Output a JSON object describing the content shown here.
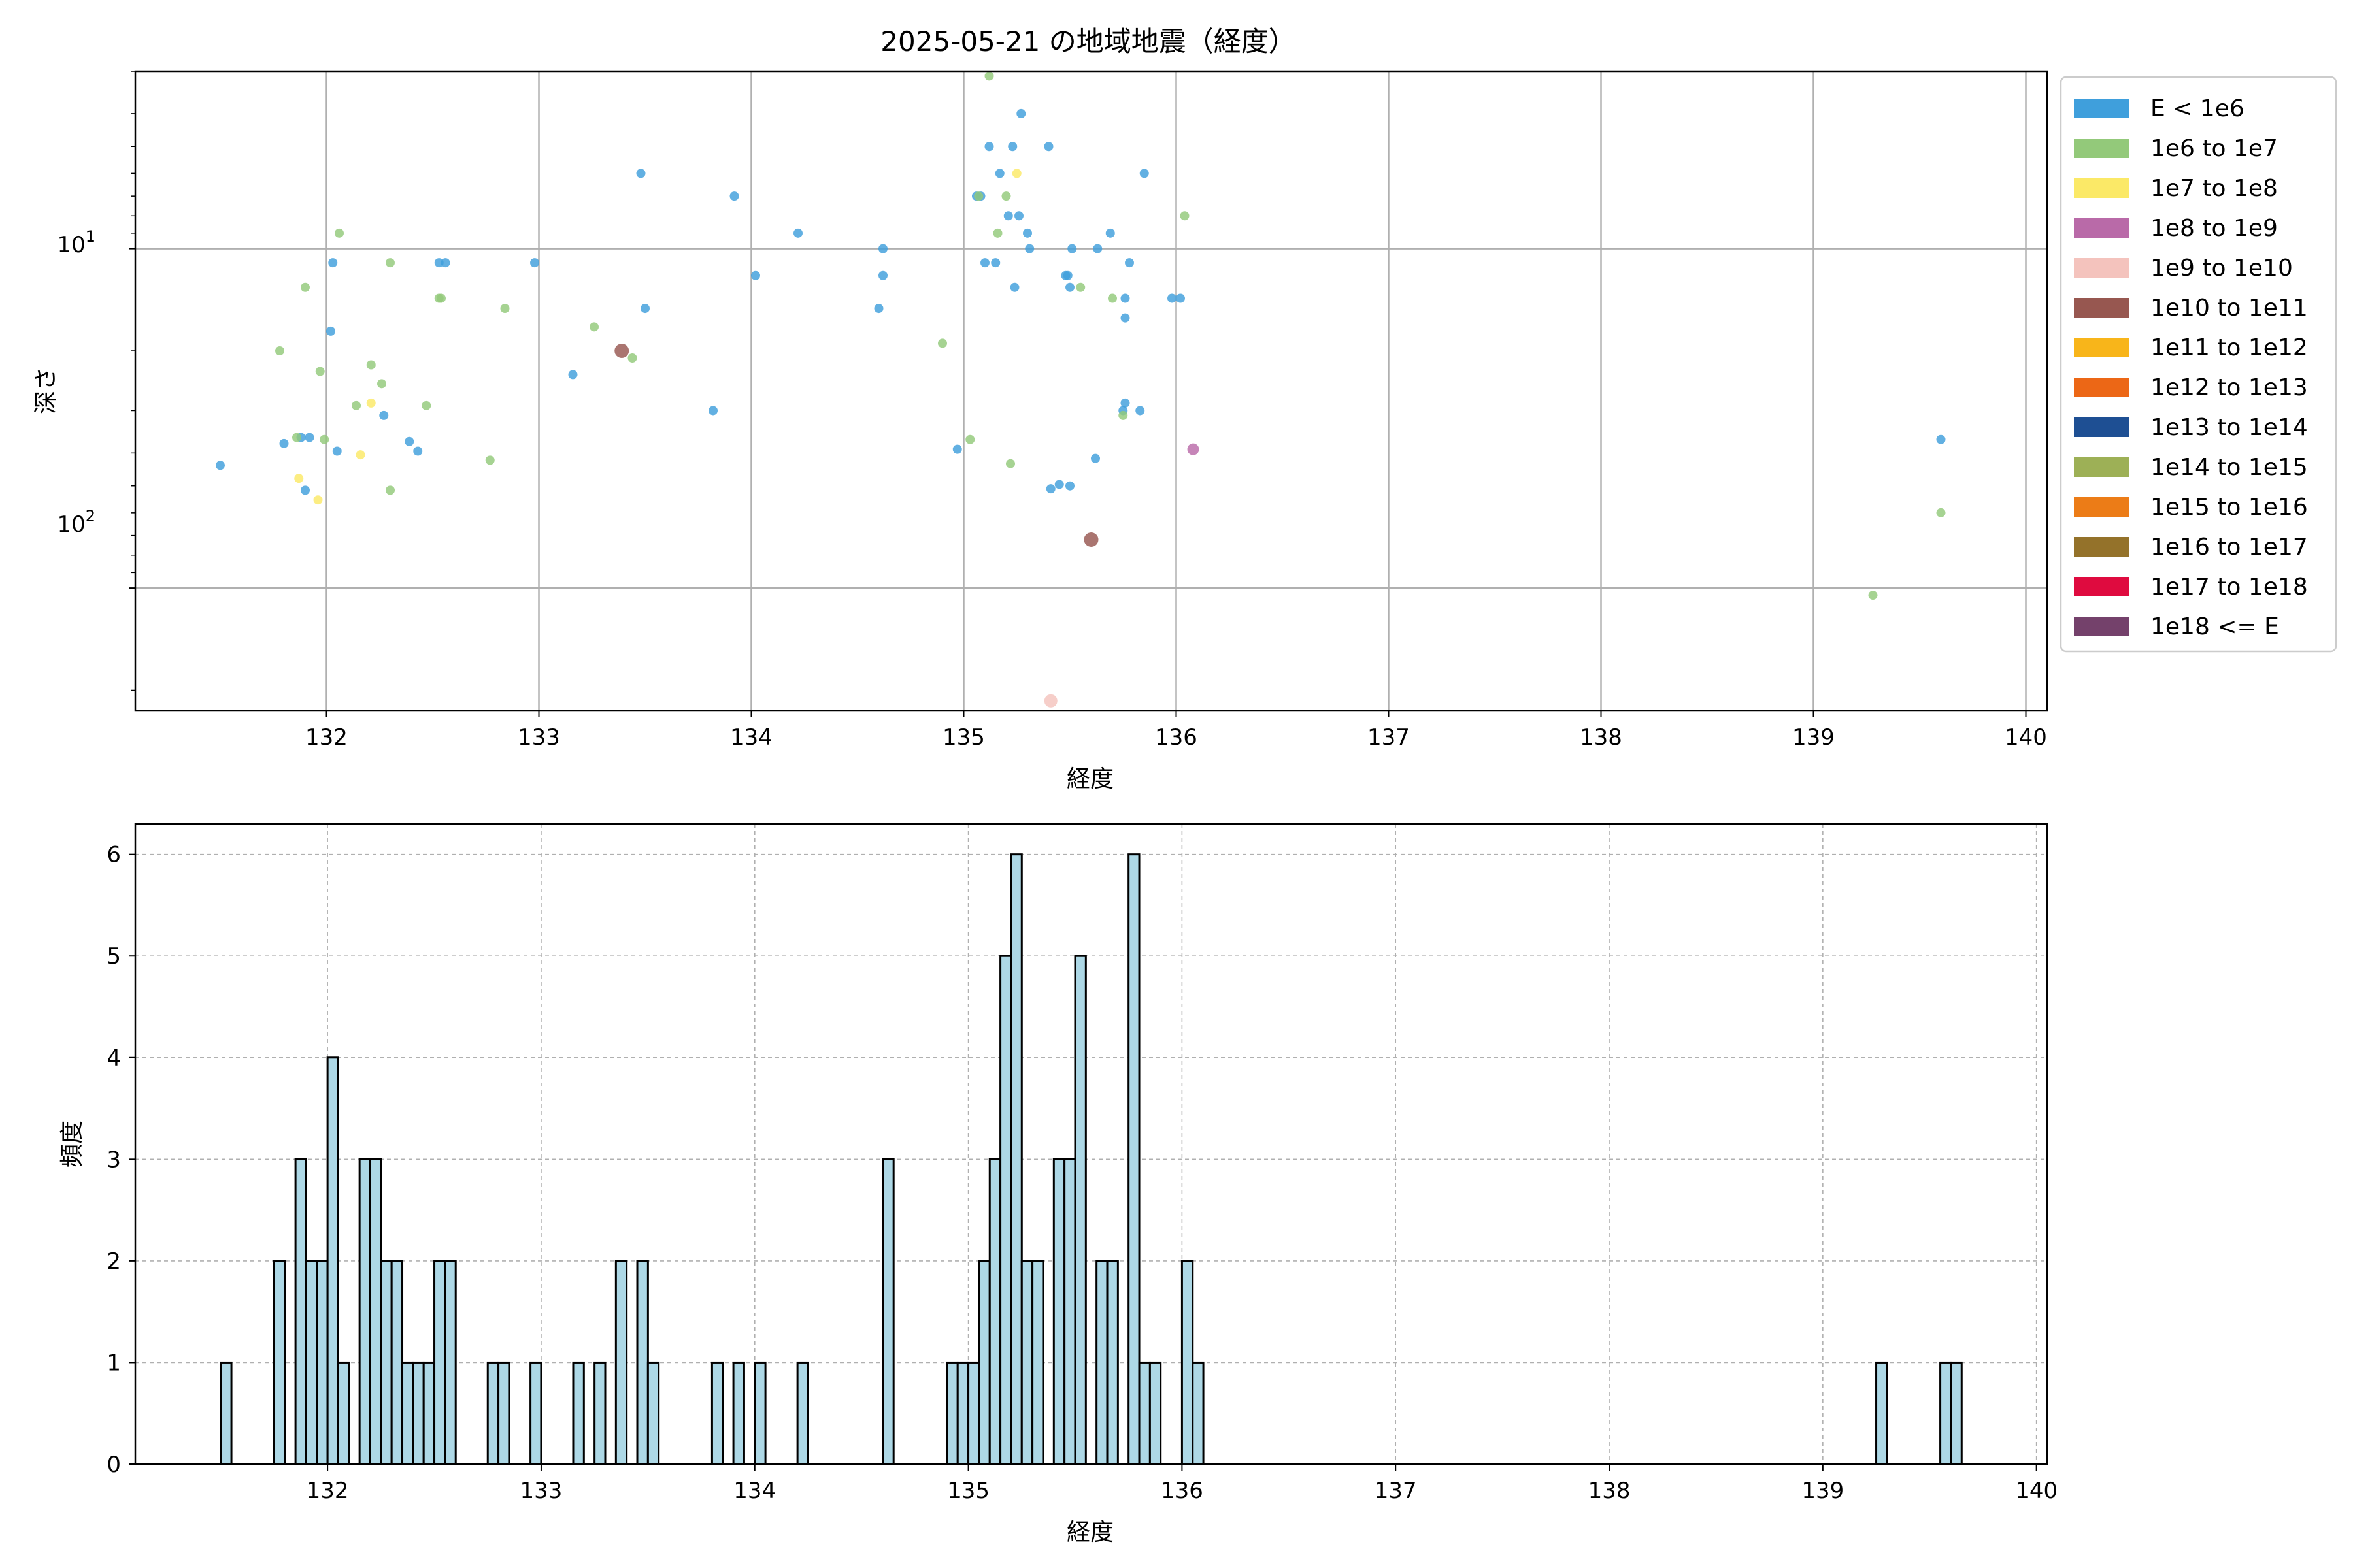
{
  "chart_data": [
    {
      "type": "scatter",
      "title": "2025-05-21 の地域地震（経度）",
      "xlabel": "経度",
      "ylabel": "深さ",
      "xlim": [
        131.1,
        140.1
      ],
      "ylim": [
        230,
        3
      ],
      "y_scale": "log",
      "y_inverted": true,
      "grid": true,
      "xticks": [
        132,
        133,
        134,
        135,
        136,
        137,
        138,
        139,
        140
      ],
      "xtick_labels": [
        "132",
        "133",
        "134",
        "135",
        "136",
        "137",
        "138",
        "139",
        "140"
      ],
      "yticks": [
        10,
        100
      ],
      "ytick_base": "10",
      "ytick_exponents": [
        "1",
        "2"
      ],
      "legend_position": "outside-right",
      "legend": [
        {
          "label": "E < 1e6",
          "color": "#3f9fdc"
        },
        {
          "label": "1e6 to 1e7",
          "color": "#93c97a"
        },
        {
          "label": "1e7 to 1e8",
          "color": "#fbe967"
        },
        {
          "label": "1e8 to 1e9",
          "color": "#b96aa8"
        },
        {
          "label": "1e9 to 1e10",
          "color": "#f4c3bd"
        },
        {
          "label": "1e10 to 1e11",
          "color": "#975750"
        },
        {
          "label": "1e11 to 1e12",
          "color": "#f8b51a"
        },
        {
          "label": "1e12 to 1e13",
          "color": "#ec6716"
        },
        {
          "label": "1e13 to 1e14",
          "color": "#1e4f93"
        },
        {
          "label": "1e14 to 1e15",
          "color": "#9db056"
        },
        {
          "label": "1e15 to 1e16",
          "color": "#ec7c17"
        },
        {
          "label": "1e16 to 1e17",
          "color": "#94722a"
        },
        {
          "label": "1e17 to 1e18",
          "color": "#df0b3f"
        },
        {
          "label": "1e18 <= E",
          "color": "#74416b"
        }
      ],
      "points": [
        {
          "x": 131.5,
          "y": 43.5,
          "c": 0
        },
        {
          "x": 131.8,
          "y": 37.5,
          "c": 0
        },
        {
          "x": 131.88,
          "y": 36,
          "c": 0
        },
        {
          "x": 131.9,
          "y": 51.5,
          "c": 0
        },
        {
          "x": 131.92,
          "y": 36,
          "c": 0
        },
        {
          "x": 132.02,
          "y": 17.5,
          "c": 0
        },
        {
          "x": 132.03,
          "y": 11,
          "c": 0
        },
        {
          "x": 132.05,
          "y": 39.5,
          "c": 0
        },
        {
          "x": 132.27,
          "y": 31,
          "c": 0
        },
        {
          "x": 132.39,
          "y": 37,
          "c": 0
        },
        {
          "x": 132.43,
          "y": 39.5,
          "c": 0
        },
        {
          "x": 132.53,
          "y": 11,
          "c": 0
        },
        {
          "x": 132.56,
          "y": 11,
          "c": 0
        },
        {
          "x": 132.98,
          "y": 11,
          "c": 0
        },
        {
          "x": 133.16,
          "y": 23.5,
          "c": 0
        },
        {
          "x": 133.48,
          "y": 6,
          "c": 0
        },
        {
          "x": 133.5,
          "y": 15,
          "c": 0
        },
        {
          "x": 133.82,
          "y": 30,
          "c": 0
        },
        {
          "x": 133.92,
          "y": 7,
          "c": 0
        },
        {
          "x": 134.02,
          "y": 12,
          "c": 0
        },
        {
          "x": 134.22,
          "y": 9,
          "c": 0
        },
        {
          "x": 134.6,
          "y": 15,
          "c": 0
        },
        {
          "x": 134.62,
          "y": 12,
          "c": 0
        },
        {
          "x": 134.62,
          "y": 10,
          "c": 0
        },
        {
          "x": 134.97,
          "y": 39,
          "c": 0
        },
        {
          "x": 135.06,
          "y": 7,
          "c": 0
        },
        {
          "x": 135.08,
          "y": 7,
          "c": 0
        },
        {
          "x": 135.1,
          "y": 11,
          "c": 0
        },
        {
          "x": 135.12,
          "y": 5,
          "c": 0
        },
        {
          "x": 135.15,
          "y": 11,
          "c": 0
        },
        {
          "x": 135.17,
          "y": 6,
          "c": 0
        },
        {
          "x": 135.21,
          "y": 8,
          "c": 0
        },
        {
          "x": 135.23,
          "y": 5,
          "c": 0
        },
        {
          "x": 135.24,
          "y": 13,
          "c": 0
        },
        {
          "x": 135.26,
          "y": 8,
          "c": 0
        },
        {
          "x": 135.27,
          "y": 4,
          "c": 0
        },
        {
          "x": 135.3,
          "y": 9,
          "c": 0
        },
        {
          "x": 135.31,
          "y": 10,
          "c": 0
        },
        {
          "x": 135.4,
          "y": 5,
          "c": 0
        },
        {
          "x": 135.41,
          "y": 51,
          "c": 0
        },
        {
          "x": 135.45,
          "y": 49.5,
          "c": 0
        },
        {
          "x": 135.48,
          "y": 12,
          "c": 0
        },
        {
          "x": 135.49,
          "y": 12,
          "c": 0
        },
        {
          "x": 135.5,
          "y": 13,
          "c": 0
        },
        {
          "x": 135.5,
          "y": 50,
          "c": 0
        },
        {
          "x": 135.51,
          "y": 10,
          "c": 0
        },
        {
          "x": 135.62,
          "y": 41.5,
          "c": 0
        },
        {
          "x": 135.63,
          "y": 10,
          "c": 0
        },
        {
          "x": 135.69,
          "y": 9,
          "c": 0
        },
        {
          "x": 135.75,
          "y": 30,
          "c": 0
        },
        {
          "x": 135.76,
          "y": 28.5,
          "c": 0
        },
        {
          "x": 135.76,
          "y": 16,
          "c": 0
        },
        {
          "x": 135.76,
          "y": 14,
          "c": 0
        },
        {
          "x": 135.78,
          "y": 11,
          "c": 0
        },
        {
          "x": 135.83,
          "y": 30,
          "c": 0
        },
        {
          "x": 135.85,
          "y": 6,
          "c": 0
        },
        {
          "x": 135.98,
          "y": 14,
          "c": 0
        },
        {
          "x": 136.02,
          "y": 14,
          "c": 0
        },
        {
          "x": 139.6,
          "y": 36.5,
          "c": 0
        },
        {
          "x": 131.78,
          "y": 20,
          "c": 1
        },
        {
          "x": 131.86,
          "y": 36,
          "c": 1
        },
        {
          "x": 131.9,
          "y": 13,
          "c": 1
        },
        {
          "x": 131.97,
          "y": 23,
          "c": 1
        },
        {
          "x": 131.99,
          "y": 36.5,
          "c": 1
        },
        {
          "x": 132.06,
          "y": 9,
          "c": 1
        },
        {
          "x": 132.14,
          "y": 29,
          "c": 1
        },
        {
          "x": 132.21,
          "y": 22,
          "c": 1
        },
        {
          "x": 132.26,
          "y": 25,
          "c": 1
        },
        {
          "x": 132.3,
          "y": 11,
          "c": 1
        },
        {
          "x": 132.3,
          "y": 51.5,
          "c": 1
        },
        {
          "x": 132.47,
          "y": 29,
          "c": 1
        },
        {
          "x": 132.53,
          "y": 14,
          "c": 1
        },
        {
          "x": 132.54,
          "y": 14,
          "c": 1
        },
        {
          "x": 132.77,
          "y": 42,
          "c": 1
        },
        {
          "x": 132.84,
          "y": 15,
          "c": 1
        },
        {
          "x": 133.26,
          "y": 17,
          "c": 1
        },
        {
          "x": 133.44,
          "y": 21,
          "c": 1
        },
        {
          "x": 134.9,
          "y": 19,
          "c": 1
        },
        {
          "x": 135.03,
          "y": 36.5,
          "c": 1
        },
        {
          "x": 135.07,
          "y": 7,
          "c": 1
        },
        {
          "x": 135.12,
          "y": 3.1,
          "c": 1
        },
        {
          "x": 135.16,
          "y": 9,
          "c": 1
        },
        {
          "x": 135.2,
          "y": 7,
          "c": 1
        },
        {
          "x": 135.22,
          "y": 43,
          "c": 1
        },
        {
          "x": 135.55,
          "y": 13,
          "c": 1
        },
        {
          "x": 135.7,
          "y": 14,
          "c": 1
        },
        {
          "x": 135.75,
          "y": 31,
          "c": 1
        },
        {
          "x": 136.04,
          "y": 8,
          "c": 1
        },
        {
          "x": 139.28,
          "y": 105,
          "c": 1
        },
        {
          "x": 139.6,
          "y": 60,
          "c": 1
        },
        {
          "x": 131.87,
          "y": 47.5,
          "c": 2
        },
        {
          "x": 131.96,
          "y": 55,
          "c": 2
        },
        {
          "x": 132.16,
          "y": 40.5,
          "c": 2
        },
        {
          "x": 132.21,
          "y": 28.5,
          "c": 2
        },
        {
          "x": 135.25,
          "y": 6,
          "c": 2
        },
        {
          "x": 136.08,
          "y": 39,
          "c": 3
        },
        {
          "x": 135.41,
          "y": 215,
          "c": 4
        },
        {
          "x": 133.39,
          "y": 20,
          "c": 5
        },
        {
          "x": 135.6,
          "y": 72,
          "c": 5
        }
      ]
    },
    {
      "type": "bar",
      "xlabel": "経度",
      "ylabel": "頻度",
      "xlim": [
        131.1,
        140.05
      ],
      "ylim": [
        0,
        6.3
      ],
      "grid": true,
      "bin_width": 0.05,
      "bar_color": "#add8e6",
      "xticks": [
        132,
        133,
        134,
        135,
        136,
        137,
        138,
        139,
        140
      ],
      "xtick_labels": [
        "132",
        "133",
        "134",
        "135",
        "136",
        "137",
        "138",
        "139",
        "140"
      ],
      "yticks": [
        0,
        1,
        2,
        3,
        4,
        5,
        6
      ],
      "ytick_labels": [
        "0",
        "1",
        "2",
        "3",
        "4",
        "5",
        "6"
      ],
      "bins": [
        {
          "x": 131.5,
          "value": 1
        },
        {
          "x": 131.75,
          "value": 2
        },
        {
          "x": 131.85,
          "value": 3
        },
        {
          "x": 131.9,
          "value": 2
        },
        {
          "x": 131.95,
          "value": 2
        },
        {
          "x": 132.0,
          "value": 4
        },
        {
          "x": 132.05,
          "value": 1
        },
        {
          "x": 132.15,
          "value": 3
        },
        {
          "x": 132.2,
          "value": 3
        },
        {
          "x": 132.25,
          "value": 2
        },
        {
          "x": 132.3,
          "value": 2
        },
        {
          "x": 132.35,
          "value": 1
        },
        {
          "x": 132.4,
          "value": 1
        },
        {
          "x": 132.45,
          "value": 1
        },
        {
          "x": 132.5,
          "value": 2
        },
        {
          "x": 132.55,
          "value": 2
        },
        {
          "x": 132.75,
          "value": 1
        },
        {
          "x": 132.8,
          "value": 1
        },
        {
          "x": 132.95,
          "value": 1
        },
        {
          "x": 133.15,
          "value": 1
        },
        {
          "x": 133.25,
          "value": 1
        },
        {
          "x": 133.35,
          "value": 2
        },
        {
          "x": 133.45,
          "value": 2
        },
        {
          "x": 133.5,
          "value": 1
        },
        {
          "x": 133.8,
          "value": 1
        },
        {
          "x": 133.9,
          "value": 1
        },
        {
          "x": 134.0,
          "value": 1
        },
        {
          "x": 134.2,
          "value": 1
        },
        {
          "x": 134.6,
          "value": 3
        },
        {
          "x": 134.9,
          "value": 1
        },
        {
          "x": 134.95,
          "value": 1
        },
        {
          "x": 135.0,
          "value": 1
        },
        {
          "x": 135.05,
          "value": 2
        },
        {
          "x": 135.1,
          "value": 3
        },
        {
          "x": 135.15,
          "value": 5
        },
        {
          "x": 135.2,
          "value": 6
        },
        {
          "x": 135.25,
          "value": 2
        },
        {
          "x": 135.3,
          "value": 2
        },
        {
          "x": 135.4,
          "value": 3
        },
        {
          "x": 135.45,
          "value": 3
        },
        {
          "x": 135.5,
          "value": 5
        },
        {
          "x": 135.6,
          "value": 2
        },
        {
          "x": 135.65,
          "value": 2
        },
        {
          "x": 135.75,
          "value": 6
        },
        {
          "x": 135.8,
          "value": 1
        },
        {
          "x": 135.85,
          "value": 1
        },
        {
          "x": 136.0,
          "value": 2
        },
        {
          "x": 136.05,
          "value": 1
        },
        {
          "x": 139.25,
          "value": 1
        },
        {
          "x": 139.55,
          "value": 1
        },
        {
          "x": 139.6,
          "value": 1
        }
      ]
    }
  ]
}
